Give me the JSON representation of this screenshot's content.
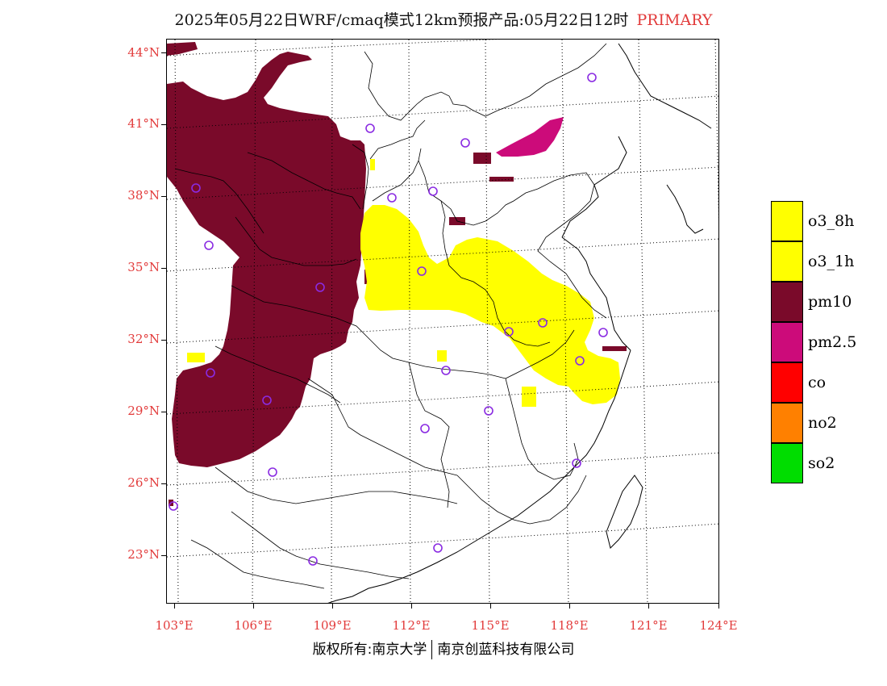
{
  "header": {
    "title": "2025年05月22日WRF/cmaq模式12km预报产品:05月22日12时",
    "primary_label": "PRIMARY"
  },
  "axes": {
    "lat_labels": [
      "44°N",
      "41°N",
      "38°N",
      "35°N",
      "32°N",
      "29°N",
      "26°N",
      "23°N"
    ],
    "lon_labels": [
      "103°E",
      "106°E",
      "109°E",
      "112°E",
      "115°E",
      "118°E",
      "121°E",
      "124°E"
    ]
  },
  "legend": {
    "items": [
      {
        "label": "o3_8h",
        "color": "#ffff00"
      },
      {
        "label": "o3_1h",
        "color": "#ffff00"
      },
      {
        "label": "pm10",
        "color": "#7a0a2a"
      },
      {
        "label": "pm2.5",
        "color": "#cc0b7a"
      },
      {
        "label": "co",
        "color": "#ff0000"
      },
      {
        "label": "no2",
        "color": "#ff8000"
      },
      {
        "label": "so2",
        "color": "#00dd00"
      }
    ]
  },
  "colors": {
    "pm10": "#7a0a2a",
    "pm2_5": "#cc0b7a",
    "o3": "#ffff00",
    "station_marker": "#8a2be2",
    "label_red": "#e23b3b"
  },
  "footer": {
    "left": "版权所有:南京大学",
    "right": "南京创蓝科技有限公司"
  }
}
